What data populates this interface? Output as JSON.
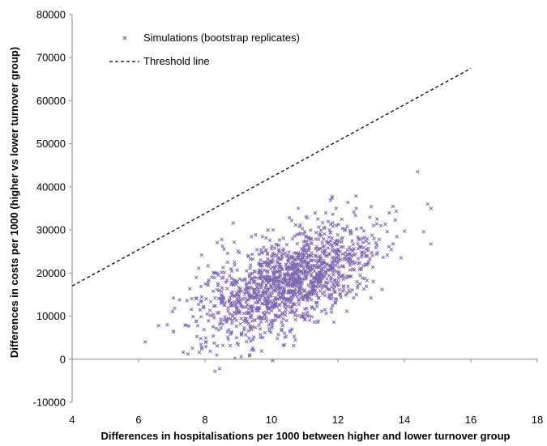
{
  "chart_data": {
    "type": "scatter",
    "title": "",
    "xlabel": "Differences in hospitalisations  per 1000 between higher and lower turnover group",
    "ylabel": "Differences in costs per 1000 (higher vs lower turnover group)",
    "xlim": [
      4,
      18
    ],
    "ylim": [
      -10000,
      80000
    ],
    "x_ticks": [
      4,
      6,
      8,
      10,
      12,
      14,
      16,
      18
    ],
    "y_ticks": [
      -10000,
      0,
      10000,
      20000,
      30000,
      40000,
      50000,
      60000,
      70000,
      80000
    ],
    "grid": false,
    "legend_position": "top-left",
    "series": [
      {
        "name": "Simulations (bootstrap replicates)",
        "kind": "scatter",
        "marker": "x",
        "color": "#7B68B0",
        "n_points": 1500,
        "center": [
          10.5,
          18000
        ],
        "sd": [
          1.3,
          6500
        ],
        "correlation": 0.55,
        "outliers": [
          [
            6.2,
            4000
          ],
          [
            14.4,
            43500
          ],
          [
            8.3,
            -2800
          ],
          [
            14.8,
            35000
          ],
          [
            14.7,
            36000
          ],
          [
            6.6,
            7800
          ]
        ]
      },
      {
        "name": "Threshold line",
        "kind": "line",
        "style": "dashed",
        "color": "#000000",
        "points": [
          [
            4,
            17000
          ],
          [
            16,
            67500
          ]
        ]
      }
    ]
  }
}
